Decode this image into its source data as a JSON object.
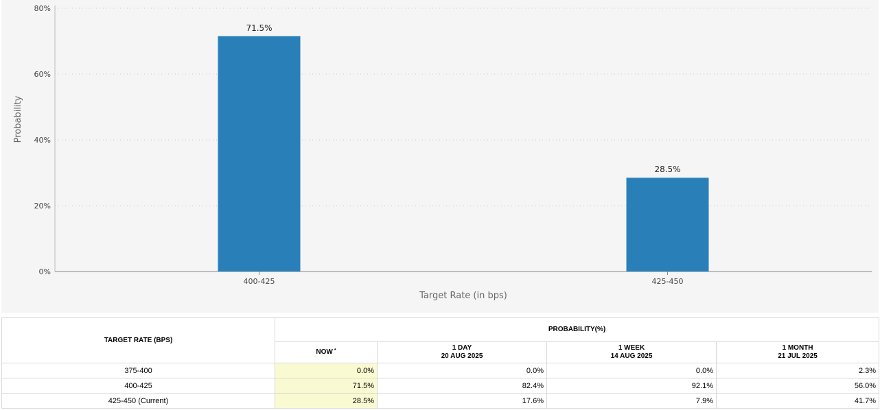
{
  "chart_data": {
    "type": "bar",
    "categories": [
      "400-425",
      "425-450"
    ],
    "values": [
      71.5,
      28.5
    ],
    "value_labels": [
      "71.5%",
      "28.5%"
    ],
    "title": "",
    "xlabel": "Target Rate (in bps)",
    "ylabel": "Probability",
    "ylim": [
      0,
      80
    ],
    "yticks": [
      0,
      20,
      40,
      60,
      80
    ],
    "ytick_labels": [
      "0%",
      "20%",
      "40%",
      "60%",
      "80%"
    ],
    "grid": "horizontal dotted",
    "bar_color": "#2980b9"
  },
  "table": {
    "target_rate_header": "TARGET RATE (BPS)",
    "probability_header": "PROBABILITY(%)",
    "columns": [
      {
        "line1": "NOW",
        "line2": "",
        "marker": "*"
      },
      {
        "line1": "1 DAY",
        "line2": "20 AUG 2025",
        "marker": ""
      },
      {
        "line1": "1 WEEK",
        "line2": "14 AUG 2025",
        "marker": ""
      },
      {
        "line1": "1 MONTH",
        "line2": "21 JUL 2025",
        "marker": ""
      }
    ],
    "rows": [
      {
        "rate": "375-400",
        "values": [
          "0.0%",
          "0.0%",
          "0.0%",
          "2.3%"
        ]
      },
      {
        "rate": "400-425",
        "values": [
          "71.5%",
          "82.4%",
          "92.1%",
          "56.0%"
        ]
      },
      {
        "rate": "425-450 (Current)",
        "values": [
          "28.5%",
          "17.6%",
          "7.9%",
          "41.7%"
        ]
      }
    ],
    "now_highlight_color": "#fafad2"
  }
}
